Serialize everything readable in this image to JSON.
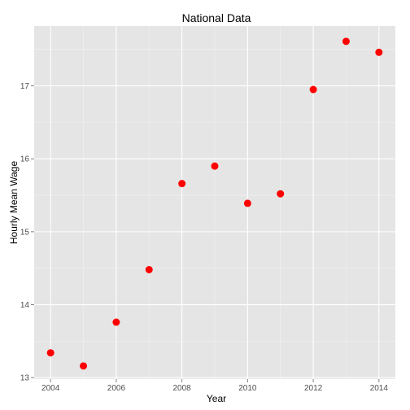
{
  "chart_data": {
    "type": "scatter",
    "title": "National Data",
    "xlabel": "Year",
    "ylabel": "Hourly Mean Wage",
    "x": [
      2004,
      2005,
      2006,
      2007,
      2008,
      2009,
      2010,
      2011,
      2012,
      2013,
      2014
    ],
    "y": [
      13.34,
      13.16,
      13.76,
      14.48,
      15.66,
      15.9,
      15.39,
      15.52,
      16.95,
      17.61,
      17.46
    ],
    "xlim": [
      2003.5,
      2014.5
    ],
    "ylim": [
      12.98,
      17.82
    ],
    "x_ticks": [
      2004,
      2006,
      2008,
      2010,
      2012,
      2014
    ],
    "y_ticks": [
      13,
      14,
      15,
      16,
      17
    ],
    "point_color": "#ff0000",
    "panel_color": "#e5e5e5",
    "grid": true,
    "legend": false
  }
}
